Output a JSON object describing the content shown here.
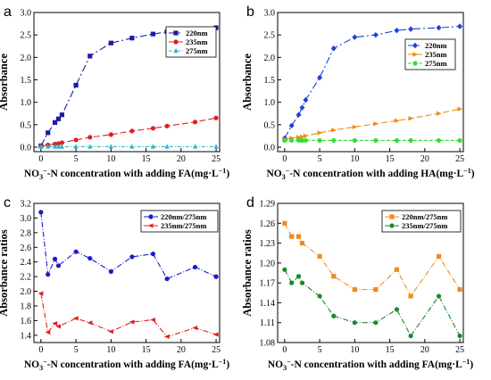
{
  "chart_data": [
    {
      "type": "line",
      "panel_label": "a",
      "ylabel": "Absorbance",
      "xlabel": "NO3−-N concentration with adding FA(mg·L−1)",
      "xlim": [
        -1,
        25.5
      ],
      "ylim": [
        -0.1,
        3.0
      ],
      "xticks": [
        0,
        5,
        10,
        15,
        20,
        25
      ],
      "yticks": [
        0.0,
        0.5,
        1.0,
        1.5,
        2.0,
        2.5,
        3.0
      ],
      "ytick_labels": [
        "0.0",
        "0.5",
        "1.0",
        "1.5",
        "2.0",
        "2.5",
        "3.0"
      ],
      "legend_position": "right",
      "series": [
        {
          "name": "220nm",
          "color": "#1a1aa6",
          "marker": "square",
          "dash": "8,3,2,3",
          "x": [
            0,
            1,
            2,
            2.5,
            3,
            5,
            7,
            10,
            13,
            16,
            18,
            22,
            25
          ],
          "y": [
            0.03,
            0.32,
            0.55,
            0.63,
            0.72,
            1.38,
            2.03,
            2.32,
            2.43,
            2.52,
            2.57,
            2.63,
            2.66
          ]
        },
        {
          "name": "235nm",
          "color": "#e02020",
          "marker": "circle",
          "dash": "7,3",
          "x": [
            0,
            1,
            2,
            2.5,
            3,
            5,
            7,
            10,
            13,
            16,
            18,
            22,
            25
          ],
          "y": [
            0.02,
            0.05,
            0.07,
            0.08,
            0.1,
            0.16,
            0.22,
            0.28,
            0.36,
            0.42,
            0.47,
            0.56,
            0.65
          ]
        },
        {
          "name": "275nm",
          "color": "#2cb5cc",
          "marker": "triangle",
          "dash": "4,2,1,2",
          "x": [
            0,
            1,
            2,
            2.5,
            3,
            5,
            7,
            10,
            13,
            16,
            18,
            22,
            25
          ],
          "y": [
            0.01,
            0.01,
            0.01,
            0.01,
            0.01,
            0.01,
            0.01,
            0.01,
            0.01,
            0.01,
            0.01,
            0.01,
            0.01
          ]
        }
      ]
    },
    {
      "type": "line",
      "panel_label": "b",
      "ylabel": "Absorbance",
      "xlabel": "NO3−-N concentration with adding HA(mg·L−1)",
      "xlim": [
        -1,
        25.5
      ],
      "ylim": [
        -0.1,
        3.0
      ],
      "xticks": [
        0,
        5,
        10,
        15,
        20,
        25
      ],
      "yticks": [
        0.0,
        0.5,
        1.0,
        1.5,
        2.0,
        2.5,
        3.0
      ],
      "ytick_labels": [
        "0.0",
        "0.5",
        "1.0",
        "1.5",
        "2.0",
        "2.5",
        "3.0"
      ],
      "legend_position": "right",
      "series": [
        {
          "name": "220nm",
          "color": "#1f3fe0",
          "marker": "diamond",
          "dash": "8,3,2,3",
          "x": [
            0,
            1,
            2,
            2.5,
            3,
            5,
            7,
            10,
            13,
            16,
            18,
            22,
            25
          ],
          "y": [
            0.2,
            0.48,
            0.72,
            0.88,
            1.05,
            1.55,
            2.2,
            2.45,
            2.5,
            2.6,
            2.63,
            2.66,
            2.69
          ]
        },
        {
          "name": "235nm",
          "color": "#f08a10",
          "marker": "triangle-right",
          "dash": "7,3",
          "x": [
            0,
            1,
            2,
            2.5,
            3,
            5,
            7,
            10,
            13,
            16,
            18,
            22,
            25
          ],
          "y": [
            0.18,
            0.2,
            0.22,
            0.23,
            0.25,
            0.32,
            0.38,
            0.45,
            0.52,
            0.59,
            0.64,
            0.75,
            0.85
          ]
        },
        {
          "name": "275nm",
          "color": "#33dd33",
          "marker": "circle",
          "dash": "4,2",
          "x": [
            0,
            1,
            2,
            2.5,
            3,
            5,
            7,
            10,
            13,
            16,
            18,
            22,
            25
          ],
          "y": [
            0.15,
            0.15,
            0.15,
            0.15,
            0.15,
            0.15,
            0.15,
            0.15,
            0.15,
            0.15,
            0.15,
            0.15,
            0.15
          ]
        }
      ]
    },
    {
      "type": "line",
      "panel_label": "c",
      "ylabel": "Absorbance ratios",
      "xlabel": "NO3−-N concentration with adding FA(mg·L−1)",
      "xlim": [
        -1,
        25.5
      ],
      "ylim": [
        1.3,
        3.2
      ],
      "xticks": [
        0,
        5,
        10,
        15,
        20,
        25
      ],
      "yticks": [
        1.4,
        1.6,
        1.8,
        2.0,
        2.2,
        2.4,
        2.6,
        2.8,
        3.0,
        3.2
      ],
      "ytick_labels": [
        "1.4",
        "1.6",
        "1.8",
        "2.0",
        "2.2",
        "2.4",
        "2.6",
        "2.8",
        "3.0",
        "3.2"
      ],
      "legend_position": "top-right",
      "series": [
        {
          "name": "220nm/275nm",
          "color": "#1a1acc",
          "marker": "circle",
          "dash": "6,2,1,2",
          "x": [
            0,
            1,
            2,
            2.5,
            5,
            7,
            10,
            13,
            16,
            18,
            22,
            25
          ],
          "y": [
            3.08,
            2.23,
            2.44,
            2.35,
            2.54,
            2.45,
            2.27,
            2.47,
            2.51,
            2.17,
            2.33,
            2.2
          ]
        },
        {
          "name": "235nm/275nm",
          "color": "#e02020",
          "marker": "triangle-left",
          "dash": "6,2,1,2",
          "x": [
            0,
            1,
            2,
            2.5,
            5,
            7,
            10,
            13,
            16,
            18,
            22,
            25
          ],
          "y": [
            1.97,
            1.44,
            1.56,
            1.52,
            1.63,
            1.57,
            1.45,
            1.58,
            1.61,
            1.38,
            1.5,
            1.41
          ]
        }
      ]
    },
    {
      "type": "line",
      "panel_label": "d",
      "ylabel": "Absorbance ratios",
      "xlabel": "NO3−-N concentration with adding FA(mg·L−1)",
      "xlim": [
        -1,
        25.5
      ],
      "ylim": [
        1.08,
        1.29
      ],
      "xticks": [
        0,
        5,
        10,
        15,
        20,
        25
      ],
      "yticks": [
        1.08,
        1.11,
        1.14,
        1.17,
        1.2,
        1.23,
        1.26,
        1.29
      ],
      "ytick_labels": [
        "1.08",
        "1.11",
        "1.14",
        "1.17",
        "1.20",
        "1.23",
        "1.26",
        "1.29"
      ],
      "legend_position": "top-right",
      "series": [
        {
          "name": "220nm/275nm",
          "color": "#f08a20",
          "marker": "square",
          "dash": "6,2,1,2",
          "x": [
            0,
            1,
            2,
            2.5,
            5,
            7,
            10,
            13,
            16,
            18,
            22,
            25
          ],
          "y": [
            1.26,
            1.24,
            1.24,
            1.23,
            1.21,
            1.18,
            1.16,
            1.16,
            1.19,
            1.15,
            1.21,
            1.16
          ]
        },
        {
          "name": "235nm/275nm",
          "color": "#1a8a2a",
          "marker": "circle",
          "dash": "6,2,1,2",
          "x": [
            0,
            1,
            2,
            2.5,
            5,
            7,
            10,
            13,
            16,
            18,
            22,
            25
          ],
          "y": [
            1.19,
            1.17,
            1.18,
            1.17,
            1.15,
            1.12,
            1.11,
            1.11,
            1.13,
            1.09,
            1.15,
            1.09
          ]
        }
      ]
    }
  ]
}
